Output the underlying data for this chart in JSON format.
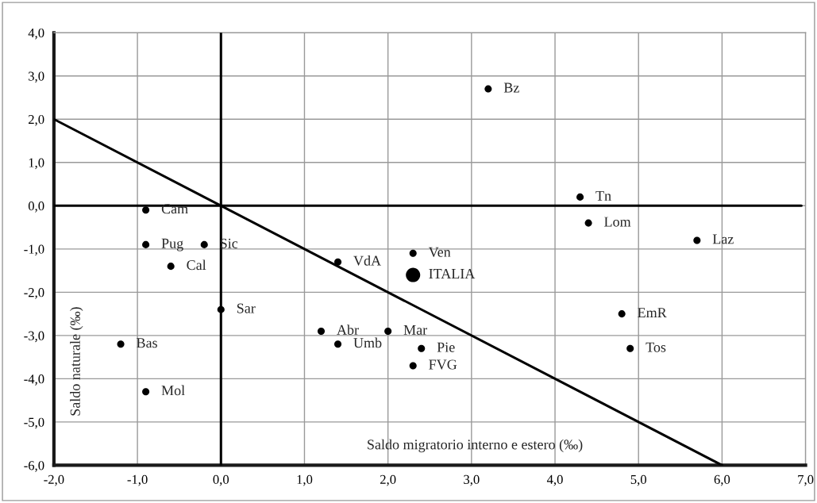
{
  "chart_data": {
    "type": "bubble",
    "xlabel": "Saldo migratorio interno e estero (‰)",
    "ylabel": "Saldo naturale (‰)",
    "series": [
      {
        "color": "#000000",
        "x": [
          3.2,
          4.3,
          4.4,
          5.7,
          -0.9,
          -0.9,
          -0.2,
          -0.6,
          1.4,
          2.3,
          2.3,
          0.0,
          4.8,
          1.2,
          2.0,
          -1.2,
          1.4,
          2.4,
          4.9,
          2.3,
          -0.9
        ],
        "values": [
          2.7,
          0.2,
          -0.4,
          -0.8,
          -0.1,
          -0.9,
          -0.9,
          -1.4,
          -1.3,
          -1.1,
          -1.6,
          -2.4,
          -2.5,
          -2.9,
          -2.9,
          -3.2,
          -3.2,
          -3.3,
          -3.3,
          -3.7,
          -4.3
        ],
        "sizes": [
          0.25,
          0.25,
          0.25,
          0.25,
          0.25,
          0.25,
          0.25,
          0.25,
          0.25,
          0.25,
          1,
          0.25,
          0.25,
          0.25,
          0.25,
          0.25,
          0.25,
          0.25,
          0.25,
          0.25,
          0.25
        ]
      },
      {
        "type": "line",
        "marker": "none",
        "color": "#000000",
        "x": [
          -2.0,
          6.0
        ],
        "values": [
          2.0,
          -6.0
        ]
      },
      {
        "type": "line",
        "marker": "none",
        "color": "#000000",
        "x": [
          0.0,
          0.0
        ],
        "values": [
          4.0,
          -6.0
        ]
      },
      {
        "type": "line",
        "marker": "none",
        "color": "#000000",
        "x": [
          -2.0,
          6.95
        ],
        "values": [
          0.0,
          0.0
        ]
      }
    ],
    "annotations": [
      {
        "text": "Bz",
        "x": 3.2,
        "y": 2.7
      },
      {
        "text": "Tn",
        "x": 4.3,
        "y": 0.2
      },
      {
        "text": "Lom",
        "x": 4.4,
        "y": -0.4
      },
      {
        "text": "Laz",
        "x": 5.7,
        "y": -0.8
      },
      {
        "text": "Cam",
        "x": -0.9,
        "y": -0.1
      },
      {
        "text": "Pug",
        "x": -0.9,
        "y": -0.9
      },
      {
        "text": "Sic",
        "x": -0.2,
        "y": -0.9
      },
      {
        "text": "Cal",
        "x": -0.6,
        "y": -1.4
      },
      {
        "text": "VdA",
        "x": 1.4,
        "y": -1.3
      },
      {
        "text": "Ven",
        "x": 2.3,
        "y": -1.1
      },
      {
        "text": "ITALIA",
        "x": 2.3,
        "y": -1.6
      },
      {
        "text": "Sar",
        "x": 0.0,
        "y": -2.4
      },
      {
        "text": "EmR",
        "x": 4.8,
        "y": -2.5
      },
      {
        "text": "Abr",
        "x": 1.2,
        "y": -2.9
      },
      {
        "text": "Mar",
        "x": 2.0,
        "y": -2.9
      },
      {
        "text": "Bas",
        "x": -1.2,
        "y": -3.2
      },
      {
        "text": "Umb",
        "x": 1.4,
        "y": -3.2
      },
      {
        "text": "Pie",
        "x": 2.4,
        "y": -3.3
      },
      {
        "text": "Tos",
        "x": 4.9,
        "y": -3.3
      },
      {
        "text": "FVG",
        "x": 2.3,
        "y": -3.7
      },
      {
        "text": "Mol",
        "x": -0.9,
        "y": -4.3
      }
    ],
    "xlim": [
      -2.0,
      7.0
    ],
    "ylim": [
      -6.0,
      4.0
    ],
    "xticks": [
      {
        "value": -2,
        "label": "-2,0"
      },
      {
        "value": -1,
        "label": "-1,0"
      },
      {
        "value": 0,
        "label": "0,0"
      },
      {
        "value": 1,
        "label": "1,0"
      },
      {
        "value": 2,
        "label": "2,0"
      },
      {
        "value": 3,
        "label": "3,0"
      },
      {
        "value": 4,
        "label": "4,0"
      },
      {
        "value": 5,
        "label": "5,0"
      },
      {
        "value": 6,
        "label": "6,0"
      },
      {
        "value": 7,
        "label": "7,0"
      }
    ],
    "yticks": [
      {
        "value": -6,
        "label": "-6,0"
      },
      {
        "value": -5,
        "label": "-5,0"
      },
      {
        "value": -4,
        "label": "-4,0"
      },
      {
        "value": -3,
        "label": "-3,0"
      },
      {
        "value": -2,
        "label": "-2,0"
      },
      {
        "value": -1,
        "label": "-1,0"
      },
      {
        "value": 0,
        "label": "0,0"
      },
      {
        "value": 1,
        "label": "1,0"
      },
      {
        "value": 2,
        "label": "2,0"
      },
      {
        "value": 3,
        "label": "3,0"
      },
      {
        "value": 4,
        "label": "4,0"
      }
    ],
    "grid": true,
    "marker": "circle",
    "legend": false
  }
}
